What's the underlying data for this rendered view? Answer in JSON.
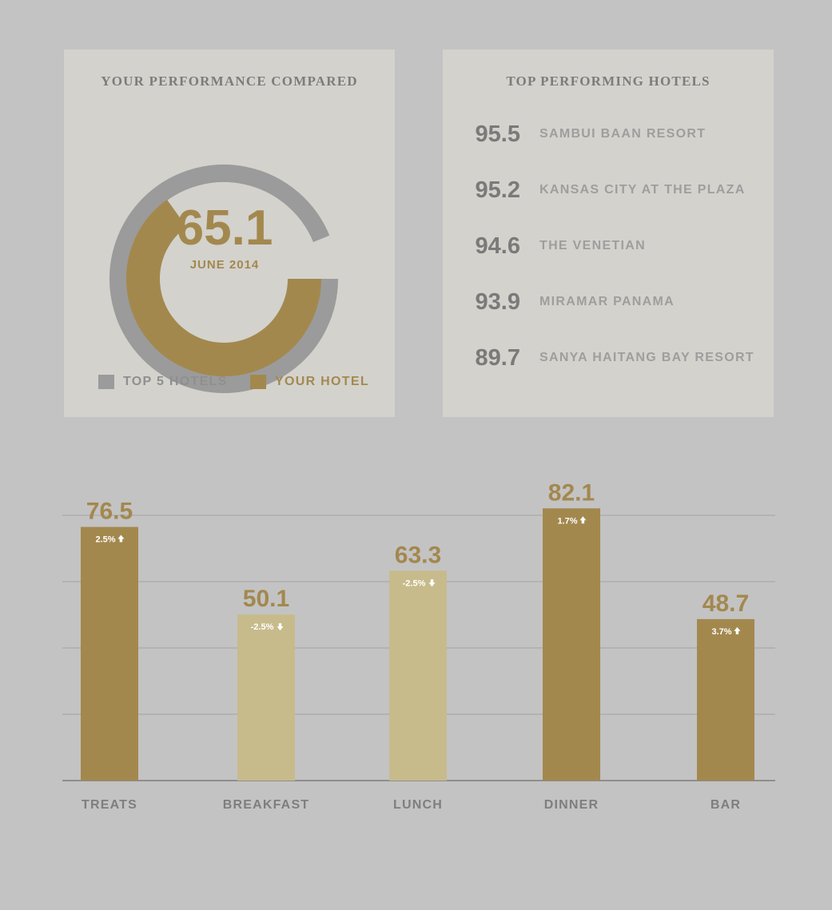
{
  "colors": {
    "background": "#c3c3c3",
    "panel": "#d3d2cd",
    "gold": "#a3884e",
    "light_gold": "#c7bb8c",
    "gray_ring": "#9b9b9b",
    "gridline": "#aeaeae"
  },
  "performance": {
    "title": "YOUR PERFORMANCE COMPARED",
    "score": "65.1",
    "period": "JUNE 2014",
    "legend": {
      "top5_label": "TOP 5 HOTELS",
      "your_label": "YOUR HOTEL"
    }
  },
  "top_hotels": {
    "title": "TOP PERFORMING HOTELS",
    "items": [
      {
        "score": "95.5",
        "name": "SAMBUI BAAN RESORT"
      },
      {
        "score": "95.2",
        "name": "KANSAS CITY AT THE PLAZA"
      },
      {
        "score": "94.6",
        "name": "THE VENETIAN"
      },
      {
        "score": "93.9",
        "name": "MIRAMAR PANAMA"
      },
      {
        "score": "89.7",
        "name": "SANYA HAITANG BAY RESORT"
      }
    ]
  },
  "chart_data": [
    {
      "type": "pie",
      "series": [
        {
          "name": "TOP 5 HOTELS",
          "value": 93.8
        },
        {
          "name": "YOUR HOTEL",
          "value": 65.1
        }
      ],
      "range": [
        0,
        100
      ]
    },
    {
      "type": "bar",
      "categories": [
        "TREATS",
        "BREAKFAST",
        "LUNCH",
        "DINNER",
        "BAR"
      ],
      "values": [
        76.5,
        50.1,
        63.3,
        82.1,
        48.7
      ],
      "value_labels": [
        "76.5",
        "50.1",
        "63.3",
        "82.1",
        "48.7"
      ],
      "changes": [
        "2.5%",
        "-2.5%",
        "-2.5%",
        "1.7%",
        "3.7%"
      ],
      "directions": [
        "up",
        "down",
        "down",
        "up",
        "up"
      ],
      "highlight": [
        true,
        false,
        false,
        true,
        true
      ],
      "ylim": [
        0,
        100
      ],
      "grid": true
    }
  ]
}
